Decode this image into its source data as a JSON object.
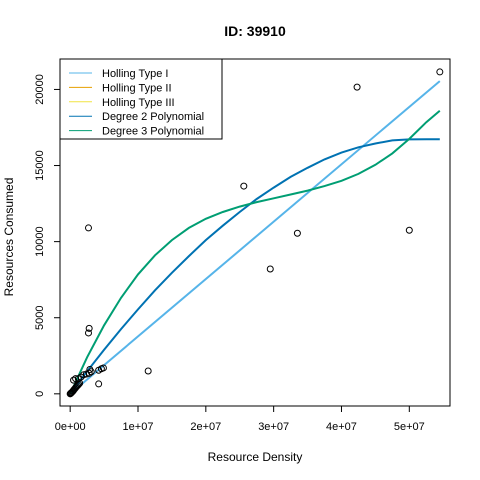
{
  "chart_data": {
    "type": "scatter",
    "title": "ID: 39910",
    "xlabel": "Resource Density",
    "ylabel": "Resources Consumed",
    "xlim": [
      -1500000,
      56000000
    ],
    "ylim": [
      -800,
      22000
    ],
    "x_ticks": [
      0,
      10000000,
      20000000,
      30000000,
      40000000,
      50000000
    ],
    "x_tick_labels": [
      "0e+00",
      "1e+07",
      "2e+07",
      "3e+07",
      "4e+07",
      "5e+07"
    ],
    "y_ticks": [
      0,
      5000,
      10000,
      15000,
      20000
    ],
    "y_tick_labels": [
      "0",
      "5000",
      "10000",
      "15000",
      "20000"
    ],
    "legend_position": "top-left",
    "points": [
      [
        0,
        0
      ],
      [
        80000,
        30
      ],
      [
        150000,
        60
      ],
      [
        250000,
        100
      ],
      [
        350000,
        150
      ],
      [
        450000,
        200
      ],
      [
        550000,
        260
      ],
      [
        650000,
        320
      ],
      [
        800000,
        400
      ],
      [
        950000,
        480
      ],
      [
        1100000,
        550
      ],
      [
        1250000,
        620
      ],
      [
        1400000,
        700
      ],
      [
        500000,
        900
      ],
      [
        800000,
        1000
      ],
      [
        1200000,
        1000
      ],
      [
        1600000,
        1100
      ],
      [
        2000000,
        1250
      ],
      [
        2400000,
        1300
      ],
      [
        2800000,
        1350
      ],
      [
        3100000,
        1450
      ],
      [
        2900000,
        1600
      ],
      [
        4200000,
        1550
      ],
      [
        4600000,
        1650
      ],
      [
        4900000,
        1700
      ],
      [
        4200000,
        650
      ],
      [
        2700000,
        4000
      ],
      [
        2800000,
        4300
      ],
      [
        2700000,
        10900
      ],
      [
        11500000,
        1500
      ],
      [
        25600000,
        13650
      ],
      [
        29500000,
        8200
      ],
      [
        33500000,
        10550
      ],
      [
        42300000,
        20150
      ],
      [
        50000000,
        10750
      ],
      [
        54500000,
        21150
      ]
    ],
    "series": [
      {
        "name": "Holling Type I",
        "color": "#56B4E9",
        "x": [
          0,
          54500000
        ],
        "y": [
          0,
          20550
        ]
      },
      {
        "name": "Holling Type II",
        "color": "#E69F00",
        "x": [],
        "y": []
      },
      {
        "name": "Holling Type III",
        "color": "#F0E442",
        "x": [],
        "y": []
      },
      {
        "name": "Degree 2 Polynomial",
        "color": "#0072B2",
        "x": [
          0,
          2500000,
          5000000,
          7500000,
          10000000,
          12500000,
          15000000,
          17500000,
          20000000,
          22500000,
          25000000,
          27500000,
          30000000,
          32500000,
          35000000,
          37500000,
          40000000,
          42500000,
          45000000,
          47500000,
          50000000,
          52500000,
          54500000
        ],
        "y": [
          0,
          1480,
          2900,
          4250,
          5550,
          6800,
          7950,
          9050,
          10100,
          11050,
          11950,
          12800,
          13550,
          14250,
          14850,
          15400,
          15850,
          16200,
          16450,
          16650,
          16720,
          16730,
          16730
        ]
      },
      {
        "name": "Degree 3 Polynomial",
        "color": "#009E73",
        "x": [
          0,
          2500000,
          5000000,
          7500000,
          10000000,
          12500000,
          15000000,
          17500000,
          20000000,
          22500000,
          25000000,
          27500000,
          30000000,
          32500000,
          35000000,
          37500000,
          40000000,
          42500000,
          45000000,
          47500000,
          50000000,
          52500000,
          54500000
        ],
        "y": [
          0,
          2400,
          4500,
          6300,
          7850,
          9100,
          10100,
          10900,
          11500,
          11950,
          12300,
          12600,
          12850,
          13100,
          13350,
          13650,
          14000,
          14450,
          15050,
          15800,
          16750,
          17850,
          18600
        ]
      }
    ]
  }
}
